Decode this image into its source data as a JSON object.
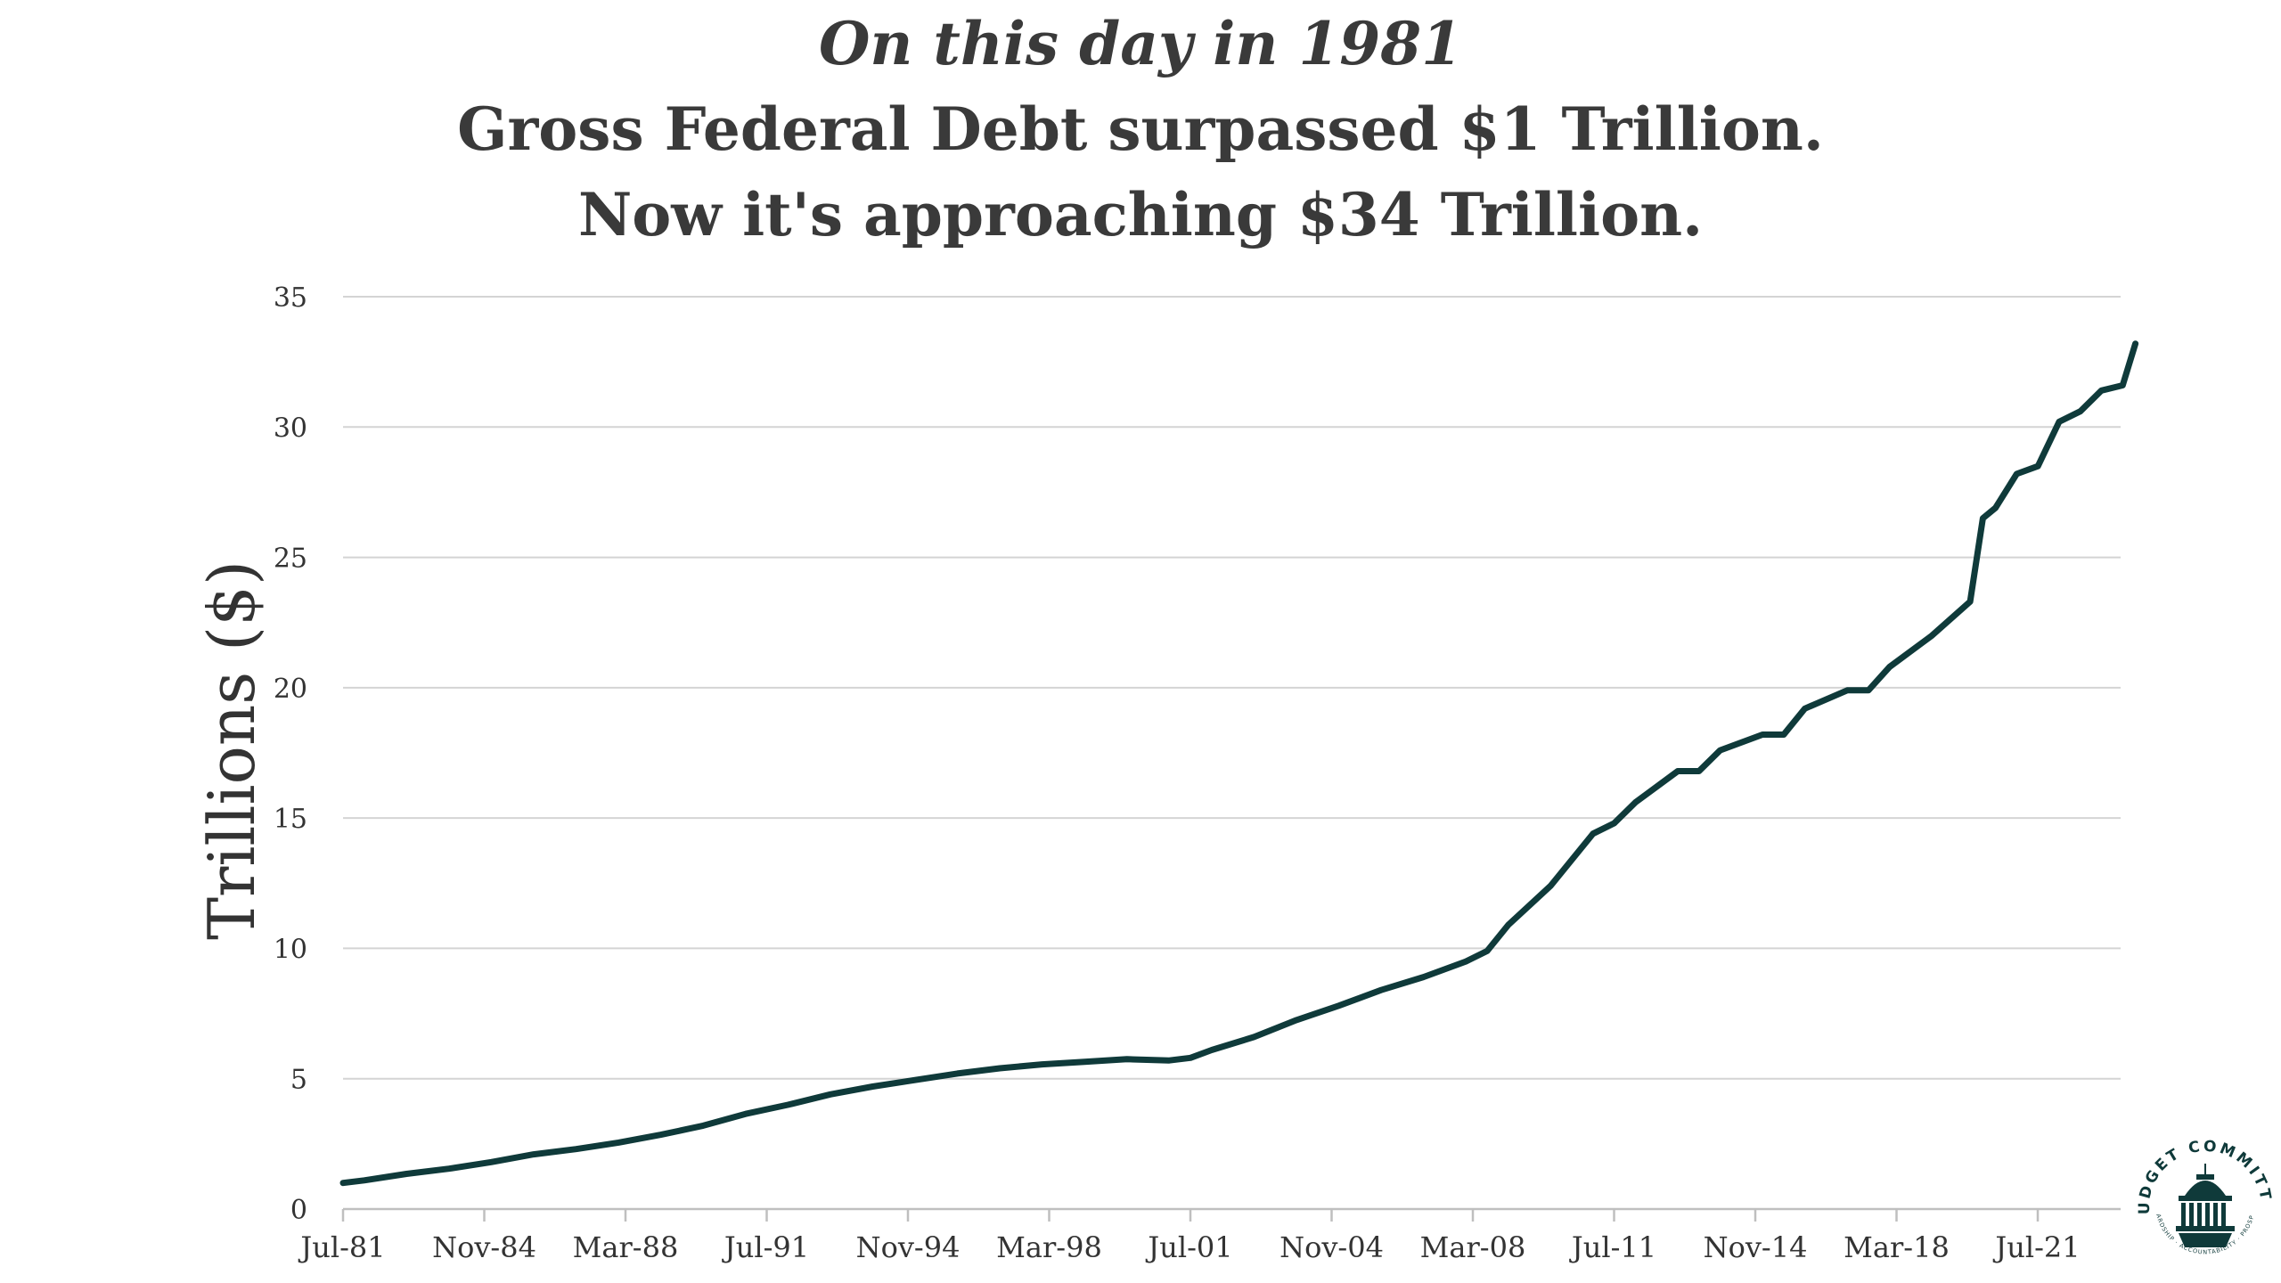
{
  "header": {
    "line1": "On this day in 1981",
    "line2": "Gross Federal Debt surpassed $1 Trillion.",
    "line3": "Now it's approaching $34 Trillion."
  },
  "logo": {
    "text": "BUDGET COMMITTEE",
    "subtext": "STEWARDSHIP · ACCOUNTABILITY · PROSPERITY",
    "color": "#0f3a3a"
  },
  "chart_data": {
    "type": "line",
    "title": "On this day in 1981 Gross Federal Debt surpassed $1 Trillion. Now it's approaching $34 Trillion.",
    "xlabel": "",
    "ylabel": "Trillions ($)",
    "ylim": [
      0,
      35
    ],
    "yticks": [
      0,
      5,
      10,
      15,
      20,
      25,
      30,
      35
    ],
    "grid": true,
    "legend": "none",
    "x_tick_labels": [
      "Jul-81",
      "Nov-84",
      "Mar-88",
      "Jul-91",
      "Nov-94",
      "Mar-98",
      "Jul-01",
      "Nov-04",
      "Mar-08",
      "Jul-11",
      "Nov-14",
      "Mar-18",
      "Jul-21"
    ],
    "series_color": "#0f3a3a",
    "series": [
      {
        "x": [
          1981.5,
          1982.0,
          1983.0,
          1984.0,
          1985.0,
          1986.0,
          1987.0,
          1988.0,
          1989.0,
          1990.0,
          1991.0,
          1992.0,
          1993.0,
          1994.0,
          1995.0,
          1996.0,
          1997.0,
          1998.0,
          1999.0,
          2000.0,
          2001.0,
          2001.5,
          2002.0,
          2003.0,
          2004.0,
          2005.0,
          2006.0,
          2007.0,
          2008.0,
          2008.5,
          2009.0,
          2010.0,
          2011.0,
          2011.5,
          2012.0,
          2013.0,
          2013.5,
          2014.0,
          2015.0,
          2015.5,
          2016.0,
          2017.0,
          2017.5,
          2018.0,
          2019.0,
          2019.9,
          2020.2,
          2020.5,
          2021.0,
          2021.5,
          2022.0,
          2022.5,
          2023.0,
          2023.5,
          2023.8
        ],
        "values": [
          1.0,
          1.1,
          1.35,
          1.55,
          1.8,
          2.1,
          2.3,
          2.55,
          2.85,
          3.2,
          3.65,
          4.0,
          4.4,
          4.7,
          4.95,
          5.2,
          5.4,
          5.55,
          5.65,
          5.75,
          5.7,
          5.8,
          6.1,
          6.6,
          7.25,
          7.8,
          8.4,
          8.9,
          9.5,
          9.9,
          10.9,
          12.4,
          14.4,
          14.8,
          15.6,
          16.8,
          16.8,
          17.6,
          18.2,
          18.2,
          19.2,
          19.9,
          19.9,
          20.8,
          22.0,
          23.3,
          26.5,
          26.9,
          28.2,
          28.5,
          30.2,
          30.6,
          31.4,
          31.6,
          33.2
        ]
      }
    ]
  }
}
